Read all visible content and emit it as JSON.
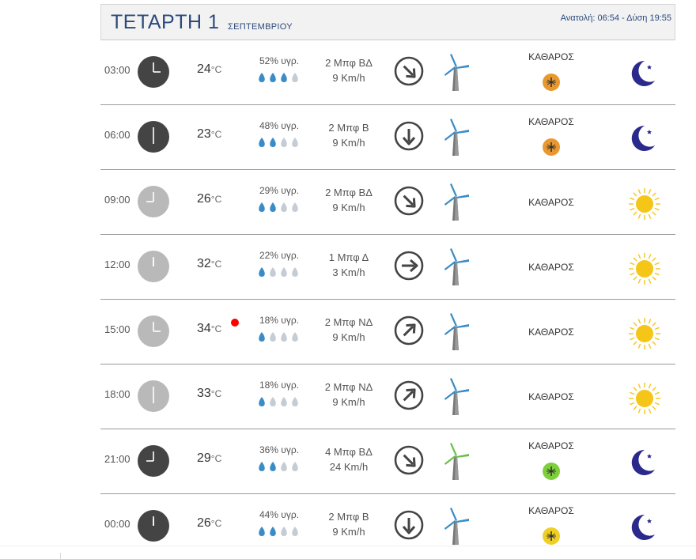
{
  "header": {
    "day": "ΤΕΤΑΡΤΗ 1",
    "month": "ΣΕΠΤΕΜΒΡΙΟΥ",
    "sun": "Ανατολή: 06:54 - Δύση 19:55"
  },
  "rows": [
    {
      "time": "03:00",
      "temp": "24",
      "unit": "°C",
      "humidity": "52% υγρ.",
      "wind_beaufort": "2 Μπφ ΒΔ",
      "wind_speed": "9 Km/h",
      "condition": "ΚΑΘΑΡΟΣ",
      "clock": "dark",
      "sky": "moon",
      "mosquito": "#e8982e",
      "drops": 3,
      "wind_dir": "ΒΔ",
      "alert": false
    },
    {
      "time": "06:00",
      "temp": "23",
      "unit": "°C",
      "humidity": "48% υγρ.",
      "wind_beaufort": "2 Μπφ Β",
      "wind_speed": "9 Km/h",
      "condition": "ΚΑΘΑΡΟΣ",
      "clock": "dark",
      "sky": "moon",
      "mosquito": "#e8982e",
      "drops": 2,
      "wind_dir": "Β",
      "alert": false
    },
    {
      "time": "09:00",
      "temp": "26",
      "unit": "°C",
      "humidity": "29% υγρ.",
      "wind_beaufort": "2 Μπφ ΒΔ",
      "wind_speed": "9 Km/h",
      "condition": "ΚΑΘΑΡΟΣ",
      "clock": "light",
      "sky": "sun",
      "mosquito": null,
      "drops": 2,
      "wind_dir": "ΒΔ",
      "alert": false
    },
    {
      "time": "12:00",
      "temp": "32",
      "unit": "°C",
      "humidity": "22% υγρ.",
      "wind_beaufort": "1 Μπφ Δ",
      "wind_speed": "3 Km/h",
      "condition": "ΚΑΘΑΡΟΣ",
      "clock": "light",
      "sky": "sun",
      "mosquito": null,
      "drops": 1,
      "wind_dir": "Δ",
      "alert": false
    },
    {
      "time": "15:00",
      "temp": "34",
      "unit": "°C",
      "humidity": "18% υγρ.",
      "wind_beaufort": "2 Μπφ ΝΔ",
      "wind_speed": "9 Km/h",
      "condition": "ΚΑΘΑΡΟΣ",
      "clock": "light",
      "sky": "sun",
      "mosquito": null,
      "drops": 1,
      "wind_dir": "ΝΔ",
      "alert": true
    },
    {
      "time": "18:00",
      "temp": "33",
      "unit": "°C",
      "humidity": "18% υγρ.",
      "wind_beaufort": "2 Μπφ ΝΔ",
      "wind_speed": "9 Km/h",
      "condition": "ΚΑΘΑΡΟΣ",
      "clock": "light",
      "sky": "sun",
      "mosquito": null,
      "drops": 1,
      "wind_dir": "ΝΔ",
      "alert": false
    },
    {
      "time": "21:00",
      "temp": "29",
      "unit": "°C",
      "humidity": "36% υγρ.",
      "wind_beaufort": "4 Μπφ ΒΔ",
      "wind_speed": "24 Km/h",
      "condition": "ΚΑΘΑΡΟΣ",
      "clock": "dark",
      "sky": "moon",
      "mosquito": "#7fce3c",
      "drops": 2,
      "wind_dir": "ΒΔ",
      "alert": false,
      "turbine_color": "#6cc04a"
    },
    {
      "time": "00:00",
      "temp": "26",
      "unit": "°C",
      "humidity": "44% υγρ.",
      "wind_beaufort": "2 Μπφ Β",
      "wind_speed": "9 Km/h",
      "condition": "ΚΑΘΑΡΟΣ",
      "clock": "dark",
      "sky": "moon",
      "mosquito": "#f0cf25",
      "drops": 2,
      "wind_dir": "Β",
      "alert": false
    }
  ],
  "colors": {
    "accent": "#2c4a7b",
    "moon": "#2a2a8c",
    "sun": "#f5c518",
    "blade_blue": "#3a8cc6"
  }
}
